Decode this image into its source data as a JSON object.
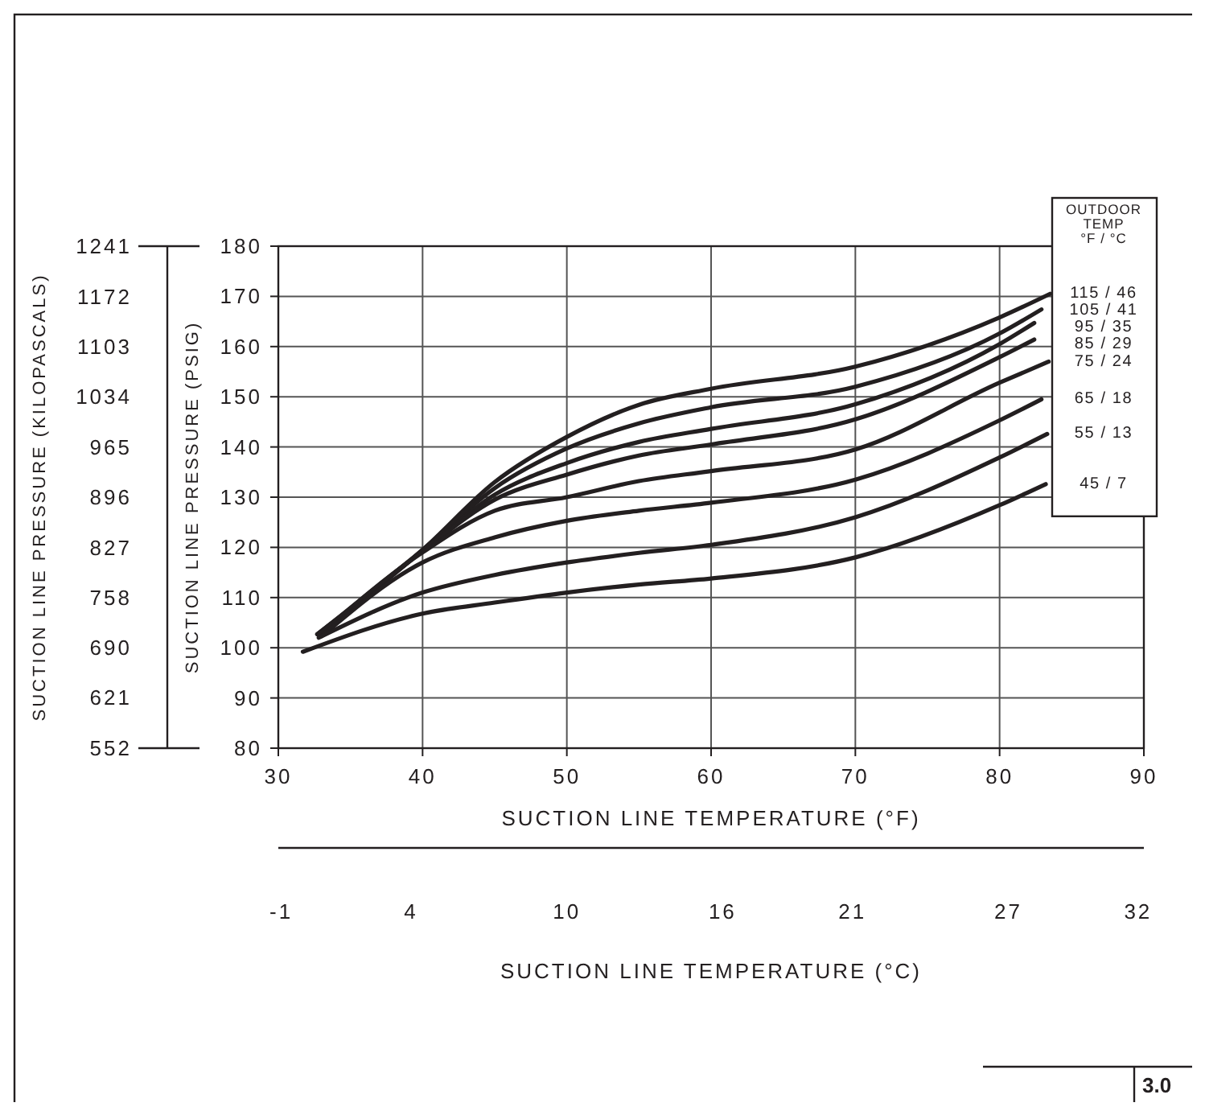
{
  "chart_data": {
    "type": "line",
    "xlabel": "SUCTION LINE TEMPERATURE (°F)",
    "ylabel": "SUCTION LINE PRESSURE (PSIG)",
    "y2label": "SUCTION LINE PRESSURE (KILOPASCALS)",
    "x2label": "SUCTION LINE TEMPERATURE (°C)",
    "legend_title": "OUTDOOR\nTEMP\n°F / °C",
    "annotations": [
      "3.0"
    ],
    "xlim": [
      30,
      90
    ],
    "xticks": [
      30,
      40,
      50,
      60,
      70,
      80,
      90
    ],
    "ylim": [
      80,
      180
    ],
    "yticks": [
      80,
      90,
      100,
      110,
      120,
      130,
      140,
      150,
      160,
      170,
      180
    ],
    "y2lim": [
      551.6,
      1241.1
    ],
    "y2ticks": [
      552,
      621,
      690,
      758,
      827,
      896,
      965,
      1034,
      1103,
      1172,
      1241
    ],
    "x2lim": [
      -1.11,
      32.22
    ],
    "x2ticks": [
      -1,
      4,
      10,
      16,
      21,
      27,
      32
    ],
    "grid": true,
    "legend": "right",
    "marker": "none",
    "line_style": "solid",
    "series": [
      {
        "name": "115 / 46",
        "color": "#231f20",
        "x": [
          32.7,
          40,
          45,
          50,
          55,
          60,
          70,
          80,
          83.5
        ],
        "values": [
          102.7,
          119.5,
          133,
          142,
          148.4,
          151.6,
          156,
          165.8,
          170.5
        ]
      },
      {
        "name": "105 / 41",
        "color": "#231f20",
        "x": [
          32.7,
          40,
          45,
          50,
          55,
          60,
          70,
          80,
          82.9
        ],
        "values": [
          102.7,
          119.5,
          131.8,
          139.7,
          144.7,
          147.9,
          152,
          162.6,
          167.4
        ]
      },
      {
        "name": "95 / 35",
        "color": "#231f20",
        "x": [
          32.8,
          40,
          45,
          50,
          55,
          60,
          70,
          80,
          82.4
        ],
        "values": [
          102.5,
          119.3,
          130.5,
          136.8,
          141,
          143.6,
          148.5,
          160.5,
          164.7
        ]
      },
      {
        "name": "85 / 29",
        "color": "#231f20",
        "x": [
          32.8,
          40,
          45,
          50,
          55,
          60,
          70,
          80,
          82.4
        ],
        "values": [
          102.5,
          119.3,
          129.5,
          134.5,
          138.3,
          140.5,
          145.5,
          157.9,
          161.4
        ]
      },
      {
        "name": "75 / 24",
        "color": "#231f20",
        "x": [
          32.8,
          40,
          45,
          50,
          55,
          60,
          70,
          80,
          83.4
        ],
        "values": [
          102.5,
          119,
          127.3,
          130,
          133.2,
          135.2,
          139.5,
          152.8,
          157
        ]
      },
      {
        "name": "65 / 18",
        "color": "#231f20",
        "x": [
          33,
          40,
          45,
          50,
          55,
          60,
          70,
          80,
          82.9
        ],
        "values": [
          102.3,
          117,
          122,
          125.3,
          127.3,
          128.9,
          133.5,
          145.3,
          149.5
        ]
      },
      {
        "name": "55 / 13",
        "color": "#231f20",
        "x": [
          32.8,
          40,
          45,
          50,
          55,
          60,
          70,
          80,
          83.3
        ],
        "values": [
          102,
          111,
          114.5,
          117,
          118.9,
          120.5,
          126,
          137.9,
          142.6
        ]
      },
      {
        "name": "45 / 7",
        "color": "#231f20",
        "x": [
          31.7,
          40,
          45,
          50,
          55,
          60,
          70,
          80,
          83.2
        ],
        "values": [
          99.2,
          106.8,
          109,
          111,
          112.6,
          113.8,
          118,
          128.4,
          132.6
        ]
      }
    ]
  }
}
